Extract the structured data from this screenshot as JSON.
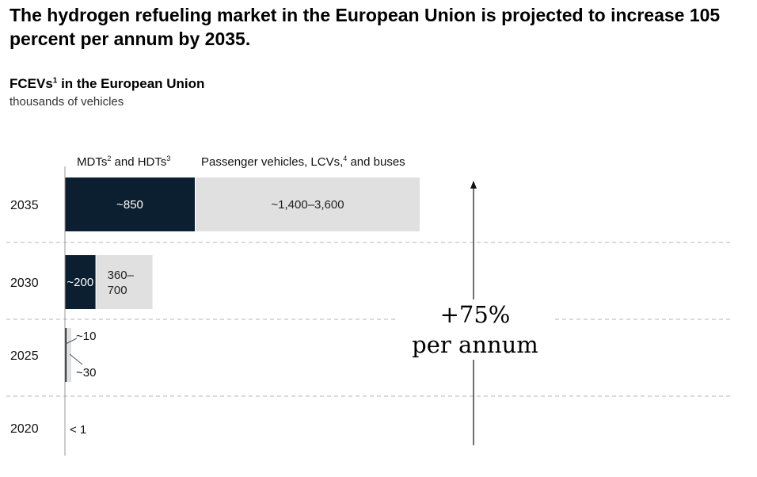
{
  "headline": "The hydrogen refueling market in the European Union is projected to increase 105 percent per annum by 2035.",
  "chart_data": {
    "type": "bar",
    "orientation": "horizontal",
    "stacked": true,
    "title": "FCEVs",
    "title_footnote": "1",
    "title_suffix": " in the European Union",
    "subtitle": "thousands of vehicles",
    "categories": [
      "2035",
      "2030",
      "2025",
      "2020"
    ],
    "legend": [
      {
        "label": "MDTs",
        "fn1": "2",
        "mid": " and HDTs",
        "fn2": "3",
        "end": ""
      },
      {
        "label": "Passenger vehicles, LCVs,",
        "fn1": "4",
        "mid": " and buses",
        "fn2": "",
        "end": ""
      }
    ],
    "series": [
      {
        "name": "MDTs and HDTs",
        "color": "#0b1f30",
        "values": [
          850,
          200,
          10,
          0
        ],
        "labels": [
          "~850",
          "~200",
          "~10",
          ""
        ]
      },
      {
        "name": "Passenger vehicles, LCVs, and buses",
        "color": "#e0e0e0",
        "values_low": [
          1400,
          360,
          30,
          0
        ],
        "values_high": [
          3600,
          700,
          30,
          0
        ],
        "labels": [
          "~1,400–3,600",
          "360–\n700",
          "~30",
          ""
        ]
      }
    ],
    "total_label_2020": "< 1",
    "annotation": [
      "+75%",
      "per annum"
    ],
    "grid": "dashed-separators"
  }
}
